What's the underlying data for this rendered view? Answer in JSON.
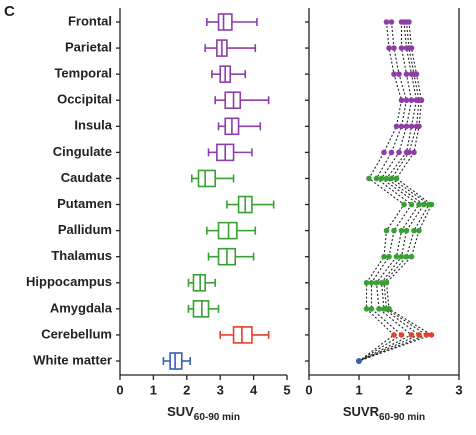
{
  "panel_label": "C",
  "chart_data": [
    {
      "type": "box",
      "categories": [
        "Frontal",
        "Parietal",
        "Temporal",
        "Occipital",
        "Insula",
        "Cingulate",
        "Caudate",
        "Putamen",
        "Pallidum",
        "Thalamus",
        "Hippocampus",
        "Amygdala",
        "Cerebellum",
        "White matter"
      ],
      "colors": [
        "#8e3fa7",
        "#8e3fa7",
        "#8e3fa7",
        "#8e3fa7",
        "#8e3fa7",
        "#8e3fa7",
        "#3aa035",
        "#3aa035",
        "#3aa035",
        "#3aa035",
        "#3aa035",
        "#3aa035",
        "#e2412b",
        "#3a60b5"
      ],
      "whisker_low": [
        2.6,
        2.55,
        2.75,
        2.85,
        2.95,
        2.65,
        2.15,
        3.2,
        2.6,
        2.65,
        2.05,
        2.05,
        3.0,
        1.3
      ],
      "q1": [
        2.95,
        2.9,
        3.0,
        3.15,
        3.15,
        2.9,
        2.35,
        3.55,
        2.95,
        2.95,
        2.2,
        2.2,
        3.4,
        1.5
      ],
      "median": [
        3.1,
        3.05,
        3.15,
        3.4,
        3.35,
        3.15,
        2.55,
        3.75,
        3.25,
        3.2,
        2.4,
        2.45,
        3.65,
        1.65
      ],
      "q3": [
        3.35,
        3.2,
        3.3,
        3.6,
        3.55,
        3.4,
        2.85,
        3.95,
        3.5,
        3.45,
        2.55,
        2.65,
        3.95,
        1.85
      ],
      "whisker_high": [
        4.1,
        4.05,
        3.75,
        4.45,
        4.2,
        3.95,
        3.4,
        4.6,
        4.05,
        4.0,
        2.85,
        2.95,
        4.45,
        2.1
      ],
      "xlabel": "SUV",
      "xlabel_sub": "60-90 min",
      "xlim": [
        0,
        5
      ],
      "xticks": [
        0,
        1,
        2,
        3,
        4,
        5
      ]
    },
    {
      "type": "dotline",
      "line_color": "#222222",
      "series": [
        {
          "values": [
            1.55,
            1.6,
            1.7,
            1.85,
            1.75,
            1.5,
            1.2,
            1.9,
            1.55,
            1.5,
            1.15,
            1.15,
            1.7,
            1
          ]
        },
        {
          "values": [
            1.65,
            1.7,
            1.8,
            1.95,
            1.85,
            1.65,
            1.35,
            2.05,
            1.7,
            1.6,
            1.25,
            1.25,
            1.85,
            1
          ]
        },
        {
          "values": [
            1.85,
            1.85,
            1.95,
            2.05,
            1.95,
            1.8,
            1.45,
            2.2,
            1.85,
            1.75,
            1.35,
            1.4,
            2.05,
            1
          ]
        },
        {
          "values": [
            1.9,
            1.95,
            2.05,
            2.15,
            2.05,
            1.95,
            1.55,
            2.3,
            1.95,
            1.85,
            1.45,
            1.5,
            2.2,
            1
          ]
        },
        {
          "values": [
            1.95,
            2.0,
            2.1,
            2.2,
            2.15,
            2.0,
            1.65,
            2.4,
            2.1,
            1.95,
            1.5,
            1.55,
            2.35,
            1
          ]
        },
        {
          "values": [
            2.0,
            2.05,
            2.15,
            2.25,
            2.2,
            2.1,
            1.75,
            2.45,
            2.2,
            2.05,
            1.55,
            1.6,
            2.45,
            1
          ]
        }
      ],
      "xlabel": "SUVR",
      "xlabel_sub": "60-90 min",
      "xlim": [
        0,
        3
      ],
      "xticks": [
        0,
        1,
        2,
        3
      ]
    }
  ]
}
